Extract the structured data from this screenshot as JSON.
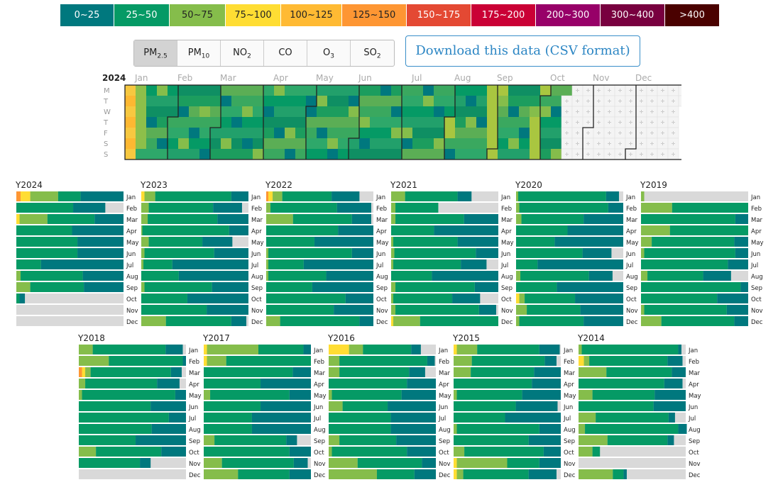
{
  "legend": [
    {
      "label": "0~25",
      "color": "#00787e",
      "text": "#ffffff"
    },
    {
      "label": "25~50",
      "color": "#059a65",
      "text": "#ffffff"
    },
    {
      "label": "50~75",
      "color": "#85bd4b",
      "text": "#222222"
    },
    {
      "label": "75~100",
      "color": "#ffdd33",
      "text": "#222222"
    },
    {
      "label": "100~125",
      "color": "#ffba33",
      "text": "#222222"
    },
    {
      "label": "125~150",
      "color": "#fe9633",
      "text": "#222222"
    },
    {
      "label": "150~175",
      "color": "#e44933",
      "text": "#ffffff"
    },
    {
      "label": "175~200",
      "color": "#ca0035",
      "text": "#ffffff"
    },
    {
      "label": "200~300",
      "color": "#970068",
      "text": "#ffffff"
    },
    {
      "label": "300~400",
      "color": "#78003f",
      "text": "#ffffff"
    },
    {
      "label": ">400",
      "color": "#4a0100",
      "text": "#ffffff"
    }
  ],
  "pollutant_tabs": [
    {
      "base": "PM",
      "sub": "2.5",
      "active": true
    },
    {
      "base": "PM",
      "sub": "10",
      "active": false
    },
    {
      "base": "NO",
      "sub": "2",
      "active": false
    },
    {
      "base": "CO",
      "sub": "",
      "active": false
    },
    {
      "base": "O",
      "sub": "3",
      "active": false
    },
    {
      "base": "SO",
      "sub": "2",
      "active": false
    }
  ],
  "download_label": "Download this data (CSV format)",
  "calendar": {
    "year": "2024",
    "months": [
      "Jan",
      "Feb",
      "Mar",
      "Apr",
      "May",
      "Jun",
      "Jul",
      "Aug",
      "Sep",
      "Oct",
      "Nov",
      "Dec"
    ],
    "days": [
      "M",
      "T",
      "W",
      "T",
      "F",
      "S",
      "S"
    ],
    "data_until_month": 9,
    "data_until_day": 14
  },
  "years": [
    {
      "label": "Y2024",
      "months": [
        [
          0,
          0,
          0.04,
          0.09,
          0.26,
          0.21,
          0.4
        ],
        [
          0,
          0,
          0,
          0,
          0,
          0.53,
          0.3
        ],
        [
          0,
          0,
          0,
          0.03,
          0.26,
          0.44,
          0.27
        ],
        [
          0,
          0,
          0,
          0,
          0,
          0.52,
          0.48
        ],
        [
          0,
          0,
          0,
          0,
          0,
          0.57,
          0.43
        ],
        [
          0,
          0,
          0,
          0,
          0,
          0.57,
          0.43
        ],
        [
          0,
          0,
          0,
          0,
          0,
          0.23,
          0.77
        ],
        [
          0,
          0,
          0,
          0,
          0.04,
          0.58,
          0.38
        ],
        [
          0,
          0,
          0,
          0,
          0.13,
          0.5,
          0.37
        ],
        [
          0,
          0,
          0,
          0,
          0,
          0.03,
          0.05
        ],
        [],
        []
      ]
    },
    {
      "label": "Y2023",
      "months": [
        [
          0,
          0,
          0,
          0.03,
          0.1,
          0.71,
          0.16
        ],
        [
          0,
          0,
          0,
          0,
          0.07,
          0.6,
          0.27
        ],
        [
          0,
          0,
          0,
          0,
          0.06,
          0.65,
          0.29
        ],
        [
          0,
          0,
          0,
          0,
          0.01,
          0.81,
          0.18
        ],
        [
          0,
          0,
          0,
          0,
          0.07,
          0.5,
          0.28
        ],
        [
          0,
          0,
          0,
          0,
          0.03,
          0.65,
          0.32
        ],
        [
          0,
          0,
          0,
          0,
          0.02,
          0.27,
          0.71
        ],
        [
          0,
          0,
          0,
          0,
          0,
          0.35,
          0.65
        ],
        [
          0,
          0,
          0,
          0,
          0.03,
          0.63,
          0.34
        ],
        [
          0,
          0,
          0,
          0,
          0,
          0.43,
          0.57
        ],
        [
          0,
          0,
          0,
          0,
          0,
          0.61,
          0.39
        ],
        [
          0,
          0,
          0,
          0,
          0.23,
          0.61,
          0.14
        ]
      ]
    },
    {
      "label": "Y2022",
      "months": [
        [
          0,
          0,
          0.02,
          0.04,
          0.09,
          0.46,
          0.26
        ],
        [
          0,
          0,
          0,
          0,
          0.04,
          0.62,
          0.32
        ],
        [
          0,
          0,
          0,
          0,
          0.25,
          0.55,
          0.18
        ],
        [
          0,
          0,
          0,
          0,
          0,
          0.67,
          0.33
        ],
        [
          0,
          0,
          0,
          0,
          0,
          0.45,
          0.55
        ],
        [
          0,
          0,
          0,
          0,
          0.02,
          0.78,
          0.2
        ],
        [
          0,
          0,
          0,
          0,
          0.02,
          0.33,
          0.65
        ],
        [
          0,
          0,
          0,
          0,
          0.02,
          0.54,
          0.44
        ],
        [
          0,
          0,
          0,
          0,
          0,
          0.43,
          0.57
        ],
        [
          0,
          0,
          0,
          0,
          0,
          0.74,
          0.26
        ],
        [
          0,
          0,
          0,
          0,
          0,
          0.63,
          0.37
        ],
        [
          0,
          0,
          0,
          0,
          0.13,
          0.74,
          0.13
        ]
      ]
    },
    {
      "label": "Y2021",
      "months": [
        [
          0,
          0,
          0,
          0,
          0.13,
          0.49,
          0.13
        ],
        [
          0,
          0,
          0,
          0,
          0.04,
          0.4,
          0
        ],
        [
          0,
          0,
          0,
          0,
          0.04,
          0.64,
          0.32
        ],
        [
          0,
          0,
          0,
          0,
          0,
          0.4,
          0.6
        ],
        [
          0,
          0,
          0,
          0,
          0.02,
          0.6,
          0.38
        ],
        [
          0,
          0,
          0,
          0,
          0.03,
          0.76,
          0.21
        ],
        [
          0,
          0,
          0,
          0,
          0.02,
          0.63,
          0.24
        ],
        [
          0,
          0,
          0,
          0,
          0,
          0.38,
          0.62
        ],
        [
          0,
          0,
          0,
          0,
          0.04,
          0.74,
          0.22
        ],
        [
          0,
          0,
          0,
          0,
          0.02,
          0.55,
          0.26
        ],
        [
          0,
          0,
          0,
          0,
          0.04,
          0.78,
          0.16
        ],
        [
          0,
          0,
          0,
          0.02,
          0.25,
          0.73,
          0
        ]
      ]
    },
    {
      "label": "Y2020",
      "months": [
        [
          0,
          0,
          0,
          0,
          0.02,
          0.82,
          0.12
        ],
        [
          0,
          0,
          0,
          0,
          0.03,
          0.83,
          0.14
        ],
        [
          0,
          0,
          0,
          0,
          0.05,
          0.58,
          0.37
        ],
        [
          0,
          0,
          0,
          0,
          0,
          0.48,
          0.52
        ],
        [
          0,
          0,
          0,
          0,
          0,
          0.36,
          0.64
        ],
        [
          0,
          0,
          0,
          0,
          0,
          0.62,
          0.27
        ],
        [
          0,
          0,
          0,
          0,
          0,
          0.2,
          0.8
        ],
        [
          0,
          0,
          0,
          0,
          0.04,
          0.64,
          0.22
        ],
        [
          0,
          0,
          0,
          0,
          0,
          0.38,
          0.62
        ],
        [
          0,
          0,
          0,
          0.03,
          0.05,
          0.47,
          0.45
        ],
        [
          0,
          0,
          0,
          0,
          0.1,
          0.5,
          0.4
        ],
        [
          0,
          0,
          0,
          0,
          0.03,
          0.6,
          0.37
        ]
      ]
    },
    {
      "label": "Y2019",
      "months": [
        [
          0,
          0,
          0,
          0,
          0.03,
          0,
          0
        ],
        [
          0,
          0,
          0,
          0,
          0.29,
          0.71,
          0
        ],
        [
          0,
          0,
          0,
          0,
          0,
          0.88,
          0.12
        ],
        [
          0,
          0,
          0,
          0,
          0.27,
          0.73,
          0
        ],
        [
          0,
          0,
          0,
          0,
          0.1,
          0.77,
          0.13
        ],
        [
          0,
          0,
          0,
          0,
          0.03,
          0.85,
          0.12
        ],
        [
          0,
          0,
          0,
          0,
          0,
          0.81,
          0.19
        ],
        [
          0,
          0,
          0,
          0,
          0.06,
          0.52,
          0.26
        ],
        [
          0,
          0,
          0,
          0,
          0,
          0.93,
          0.07
        ],
        [
          0,
          0,
          0,
          0,
          0,
          0.71,
          0.29
        ],
        [
          0,
          0,
          0,
          0,
          0.03,
          0.77,
          0.2
        ],
        [
          0,
          0,
          0,
          0,
          0.19,
          0.68,
          0.13
        ]
      ]
    },
    {
      "label": "Y2018",
      "months": [
        [
          0,
          0,
          0,
          0,
          0.13,
          0.68,
          0.16
        ],
        [
          0,
          0,
          0,
          0,
          0.28,
          0.69,
          0.03
        ],
        [
          0,
          0,
          0.03,
          0.03,
          0.05,
          0.75,
          0.1
        ],
        [
          0,
          0,
          0,
          0,
          0.06,
          0.67,
          0.21
        ],
        [
          0,
          0,
          0,
          0,
          0.03,
          0.87,
          0.1
        ],
        [
          0,
          0,
          0,
          0,
          0,
          0.67,
          0.33
        ],
        [
          0,
          0,
          0,
          0,
          0,
          0.84,
          0.16
        ],
        [
          0,
          0,
          0,
          0,
          0,
          0.68,
          0.32
        ],
        [
          0,
          0,
          0,
          0,
          0,
          0.53,
          0.47
        ],
        [
          0,
          0,
          0,
          0,
          0.16,
          0.61,
          0.23
        ],
        [
          0,
          0,
          0,
          0,
          0,
          0.57,
          0.1
        ],
        [
          0,
          0,
          0,
          0,
          0,
          0,
          0
        ]
      ]
    },
    {
      "label": "Y2017",
      "months": [
        [
          0,
          0,
          0,
          0.03,
          0.48,
          0.42,
          0.07
        ],
        [
          0,
          0,
          0,
          0.03,
          0.18,
          0.79,
          0
        ],
        [
          0,
          0,
          0,
          0,
          0,
          0.83,
          0.17
        ],
        [
          0,
          0,
          0,
          0,
          0,
          0.53,
          0.47
        ],
        [
          0,
          0,
          0,
          0,
          0.06,
          0.74,
          0.2
        ],
        [
          0,
          0,
          0,
          0,
          0,
          0.53,
          0.47
        ],
        [
          0,
          0,
          0,
          0,
          0,
          0.45,
          0.55
        ],
        [
          0,
          0,
          0,
          0,
          0,
          0.45,
          0.55
        ],
        [
          0,
          0,
          0,
          0,
          0.1,
          0.67,
          0.1
        ],
        [
          0,
          0,
          0,
          0,
          0,
          0.8,
          0.2
        ],
        [
          0,
          0,
          0,
          0,
          0.17,
          0.67,
          0.13
        ],
        [
          0,
          0,
          0,
          0,
          0.32,
          0.48,
          0.2
        ]
      ]
    },
    {
      "label": "Y2016",
      "months": [
        [
          0,
          0,
          0,
          0.19,
          0.13,
          0.45,
          0.09
        ],
        [
          0,
          0,
          0,
          0,
          0.1,
          0.82,
          0.07
        ],
        [
          0,
          0,
          0,
          0,
          0.1,
          0.65,
          0.15
        ],
        [
          0,
          0,
          0,
          0,
          0,
          0.73,
          0.27
        ],
        [
          0,
          0,
          0,
          0,
          0.03,
          0.65,
          0.32
        ],
        [
          0,
          0,
          0,
          0,
          0.13,
          0.42,
          0.45
        ],
        [
          0,
          0,
          0,
          0,
          0,
          0.58,
          0.42
        ],
        [
          0,
          0,
          0,
          0,
          0,
          0.58,
          0.42
        ],
        [
          0,
          0,
          0,
          0,
          0.1,
          0.53,
          0.37
        ],
        [
          0,
          0,
          0,
          0,
          0.03,
          0.7,
          0.27
        ],
        [
          0,
          0,
          0,
          0,
          0.27,
          0.6,
          0.13
        ],
        [
          0,
          0,
          0,
          0,
          0.45,
          0.35,
          0.2
        ]
      ]
    },
    {
      "label": "Y2015",
      "months": [
        [
          0,
          0,
          0,
          0.03,
          0.19,
          0.58,
          0.19
        ],
        [
          0,
          0,
          0,
          0,
          0.17,
          0.68,
          0.11
        ],
        [
          0,
          0,
          0,
          0,
          0.16,
          0.59,
          0.25
        ],
        [
          0,
          0,
          0,
          0,
          0,
          0.73,
          0.27
        ],
        [
          0,
          0,
          0,
          0,
          0.03,
          0.61,
          0.36
        ],
        [
          0,
          0,
          0,
          0,
          0,
          0.58,
          0.39
        ],
        [
          0,
          0,
          0,
          0,
          0,
          0.48,
          0.52
        ],
        [
          0,
          0,
          0,
          0,
          0.03,
          0.77,
          0.2
        ],
        [
          0,
          0,
          0,
          0,
          0,
          0.7,
          0.3
        ],
        [
          0,
          0,
          0,
          0,
          0.1,
          0.74,
          0.16
        ],
        [
          0,
          0,
          0,
          0.03,
          0.47,
          0.3,
          0.2
        ],
        [
          0,
          0,
          0,
          0.03,
          0.06,
          0.61,
          0.26
        ]
      ]
    },
    {
      "label": "Y2014",
      "months": [
        [
          0,
          0,
          0,
          0,
          0.03,
          0.9,
          0.03
        ],
        [
          0,
          0,
          0,
          0.05,
          0.05,
          0.73,
          0.14
        ],
        [
          0,
          0,
          0,
          0,
          0.26,
          0.61,
          0.13
        ],
        [
          0,
          0,
          0,
          0,
          0,
          0.8,
          0.17
        ],
        [
          0,
          0,
          0,
          0,
          0.13,
          0.58,
          0.29
        ],
        [
          0,
          0,
          0,
          0,
          0,
          0.7,
          0.3
        ],
        [
          0,
          0,
          0,
          0,
          0.16,
          0.68,
          0.06
        ],
        [
          0,
          0,
          0,
          0,
          0.06,
          0.87,
          0.08
        ],
        [
          0,
          0,
          0,
          0,
          0.27,
          0.56,
          0.06
        ],
        [
          0,
          0,
          0,
          0,
          0.13,
          0.07,
          0
        ],
        [
          0,
          0,
          0,
          0,
          0,
          0,
          0
        ],
        [
          0,
          0,
          0,
          0,
          0.32,
          0.1,
          0.03
        ]
      ]
    }
  ]
}
